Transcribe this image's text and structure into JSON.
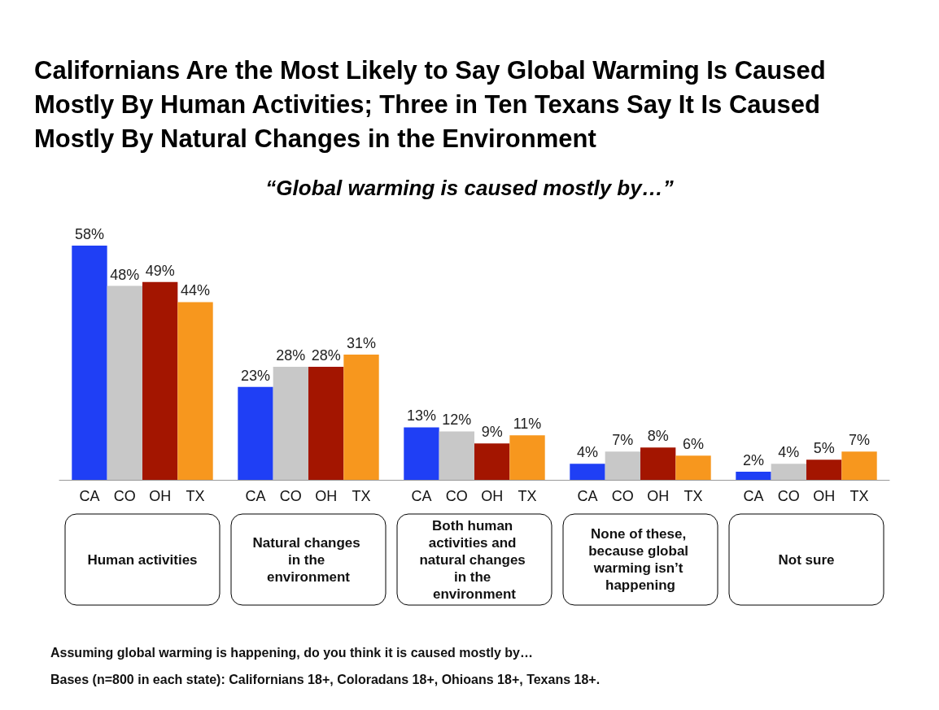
{
  "chart_data": {
    "type": "bar",
    "title": "Californians Are the Most Likely to Say Global Warming Is Caused Mostly By Human Activities; Three in Ten Texans Say It Is Caused Mostly By Natural Changes in the Environment",
    "subtitle": "“Global warming is caused mostly by…”",
    "categories": [
      "Human activities",
      "Natural changes in the environment",
      "Both human activities and natural changes in the environment",
      "None of these, because global warming isn’t happening",
      "Not sure"
    ],
    "series": [
      {
        "name": "CA",
        "color": "#1f3ff5",
        "values": [
          58,
          23,
          13,
          4,
          2
        ],
        "value_labels": [
          "58%",
          "23%",
          "13%",
          "4%",
          "2%"
        ]
      },
      {
        "name": "CO",
        "color": "#c8c8c8",
        "values": [
          48,
          28,
          12,
          7,
          4
        ],
        "value_labels": [
          "48%",
          "28%",
          "12%",
          "7%",
          "4%"
        ]
      },
      {
        "name": "OH",
        "color": "#a31500",
        "values": [
          49,
          28,
          9,
          8,
          5
        ],
        "value_labels": [
          "49%",
          "28%",
          "9%",
          "8%",
          "5%"
        ]
      },
      {
        "name": "TX",
        "color": "#f7971e",
        "values": [
          44,
          31,
          11,
          6,
          7
        ],
        "value_labels": [
          "44%",
          "31%",
          "11%",
          "6%",
          "7%"
        ]
      }
    ],
    "legend": false,
    "grid": false,
    "annotations": [
      "Assuming global warming is happening, do you think it is caused mostly by…",
      "Bases (n=800 in each state): Californians 18+, Coloradans 18+, Ohioans 18+, Texans 18+."
    ]
  }
}
